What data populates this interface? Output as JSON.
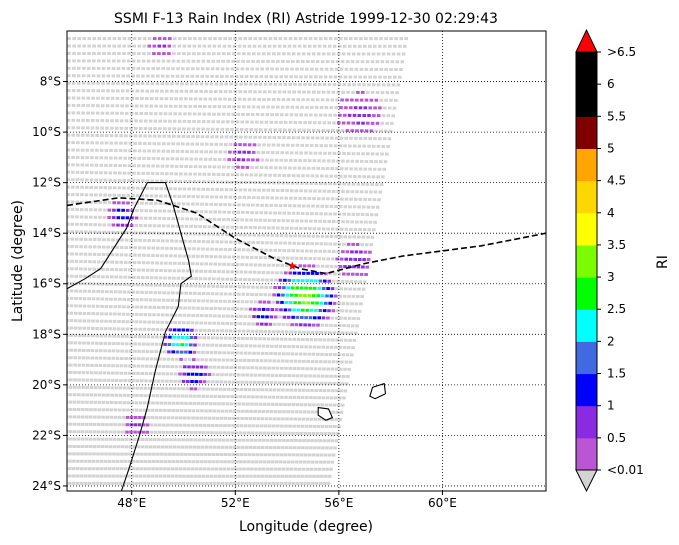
{
  "chart_data": {
    "type": "heatmap",
    "title": "SSMI F-13 Rain Index (RI) Astride 1999-12-30 02:29:43",
    "xlabel": "Longitude (degree)",
    "ylabel": "Latitude (degree)",
    "xlim": [
      45.5,
      64.0
    ],
    "ylim": [
      -24.2,
      -6.0
    ],
    "xticks": [
      {
        "value": 48,
        "label": "48°E"
      },
      {
        "value": 52,
        "label": "52°E"
      },
      {
        "value": 56,
        "label": "56°E"
      },
      {
        "value": 60,
        "label": "60°E"
      }
    ],
    "yticks": [
      {
        "value": -8,
        "label": "8°S"
      },
      {
        "value": -10,
        "label": "10°S"
      },
      {
        "value": -12,
        "label": "12°S"
      },
      {
        "value": -14,
        "label": "14°S"
      },
      {
        "value": -16,
        "label": "16°S"
      },
      {
        "value": -18,
        "label": "18°S"
      },
      {
        "value": -20,
        "label": "20°S"
      },
      {
        "value": -22,
        "label": "22°S"
      },
      {
        "value": -24,
        "label": "24°S"
      }
    ],
    "grid": true,
    "colorbar": {
      "label": "RI",
      "boundaries": [
        0.01,
        0.5,
        1,
        1.5,
        2,
        2.5,
        3,
        3.5,
        4,
        4.5,
        5,
        5.5,
        6,
        6.5
      ],
      "tick_labels": [
        "<0.01",
        "0.5",
        "1",
        "1.5",
        "2",
        "2.5",
        "3",
        "3.5",
        "4",
        "4.5",
        "5",
        "5.5",
        "6",
        ">6.5"
      ],
      "colors": [
        "#ba55d3",
        "#8a2be2",
        "#0000ff",
        "#4169e1",
        "#00ffff",
        "#00ff00",
        "#7cfc00",
        "#ffff00",
        "#ffd700",
        "#ffa500",
        "#800000",
        "#000000",
        "#000000",
        "#000000"
      ],
      "under_color": "#d3d3d3",
      "over_color": "#ff0000"
    },
    "swath": {
      "description_color": "#d3d3d3",
      "corners": [
        [
          45.5,
          -6.3
        ],
        [
          58.6,
          -6.3
        ],
        [
          55.6,
          -23.9
        ],
        [
          45.5,
          -22.6
        ]
      ]
    },
    "rain_cells": [
      {
        "lon": 54.7,
        "lat": -16.5,
        "radius": 1.25,
        "peak": 3.2
      },
      {
        "lon": 53.1,
        "lat": -17.2,
        "radius": 0.55,
        "peak": 1.2
      },
      {
        "lon": 49.9,
        "lat": -18.3,
        "radius": 0.7,
        "peak": 2.6
      },
      {
        "lon": 50.4,
        "lat": -19.6,
        "radius": 0.6,
        "peak": 1.3
      },
      {
        "lon": 47.6,
        "lat": -13.3,
        "radius": 0.6,
        "peak": 1.2
      },
      {
        "lon": 48.2,
        "lat": -21.6,
        "radius": 0.5,
        "peak": 0.6
      },
      {
        "lon": 56.8,
        "lat": -9.3,
        "radius": 0.9,
        "peak": 0.6
      },
      {
        "lon": 52.3,
        "lat": -10.9,
        "radius": 0.6,
        "peak": 0.6
      },
      {
        "lon": 49.1,
        "lat": -6.6,
        "radius": 0.5,
        "peak": 0.6
      },
      {
        "lon": 56.6,
        "lat": -15.1,
        "radius": 0.7,
        "peak": 0.8
      }
    ],
    "storm_track": {
      "style": "dashed",
      "color": "#000000",
      "points": [
        [
          45.5,
          -12.9
        ],
        [
          47.5,
          -12.6
        ],
        [
          49.0,
          -12.7
        ],
        [
          50.5,
          -13.2
        ],
        [
          52.0,
          -14.2
        ],
        [
          53.5,
          -15.0
        ],
        [
          54.5,
          -15.4
        ],
        [
          55.5,
          -15.6
        ],
        [
          57.0,
          -15.2
        ],
        [
          58.5,
          -14.9
        ],
        [
          60.0,
          -14.7
        ],
        [
          61.5,
          -14.5
        ],
        [
          63.0,
          -14.2
        ],
        [
          64.0,
          -14.0
        ]
      ]
    },
    "storm_position": {
      "lon": 54.2,
      "lat": -15.3,
      "marker": "red-star"
    },
    "coastline_madagascar": [
      [
        48.6,
        -12.0
      ],
      [
        49.3,
        -12.0
      ],
      [
        49.6,
        -12.9
      ],
      [
        49.9,
        -14.0
      ],
      [
        50.2,
        -15.1
      ],
      [
        50.3,
        -15.7
      ],
      [
        49.9,
        -16.0
      ],
      [
        49.8,
        -16.9
      ],
      [
        49.3,
        -17.9
      ],
      [
        48.9,
        -19.5
      ],
      [
        48.6,
        -20.9
      ],
      [
        48.3,
        -22.0
      ],
      [
        47.9,
        -23.3
      ],
      [
        47.6,
        -24.2
      ]
    ],
    "coastline_west": [
      [
        45.5,
        -16.2
      ],
      [
        46.2,
        -15.8
      ],
      [
        46.8,
        -15.4
      ],
      [
        47.3,
        -14.6
      ],
      [
        47.8,
        -13.8
      ],
      [
        48.1,
        -13.0
      ],
      [
        48.6,
        -12.0
      ]
    ],
    "island_mauritius": [
      [
        55.2,
        -20.9
      ],
      [
        55.6,
        -20.95
      ],
      [
        55.75,
        -21.3
      ],
      [
        55.5,
        -21.4
      ],
      [
        55.2,
        -21.2
      ]
    ],
    "island_reunion": [
      [
        57.3,
        -20.1
      ],
      [
        57.75,
        -19.95
      ],
      [
        57.8,
        -20.35
      ],
      [
        57.4,
        -20.55
      ],
      [
        57.2,
        -20.45
      ]
    ]
  }
}
